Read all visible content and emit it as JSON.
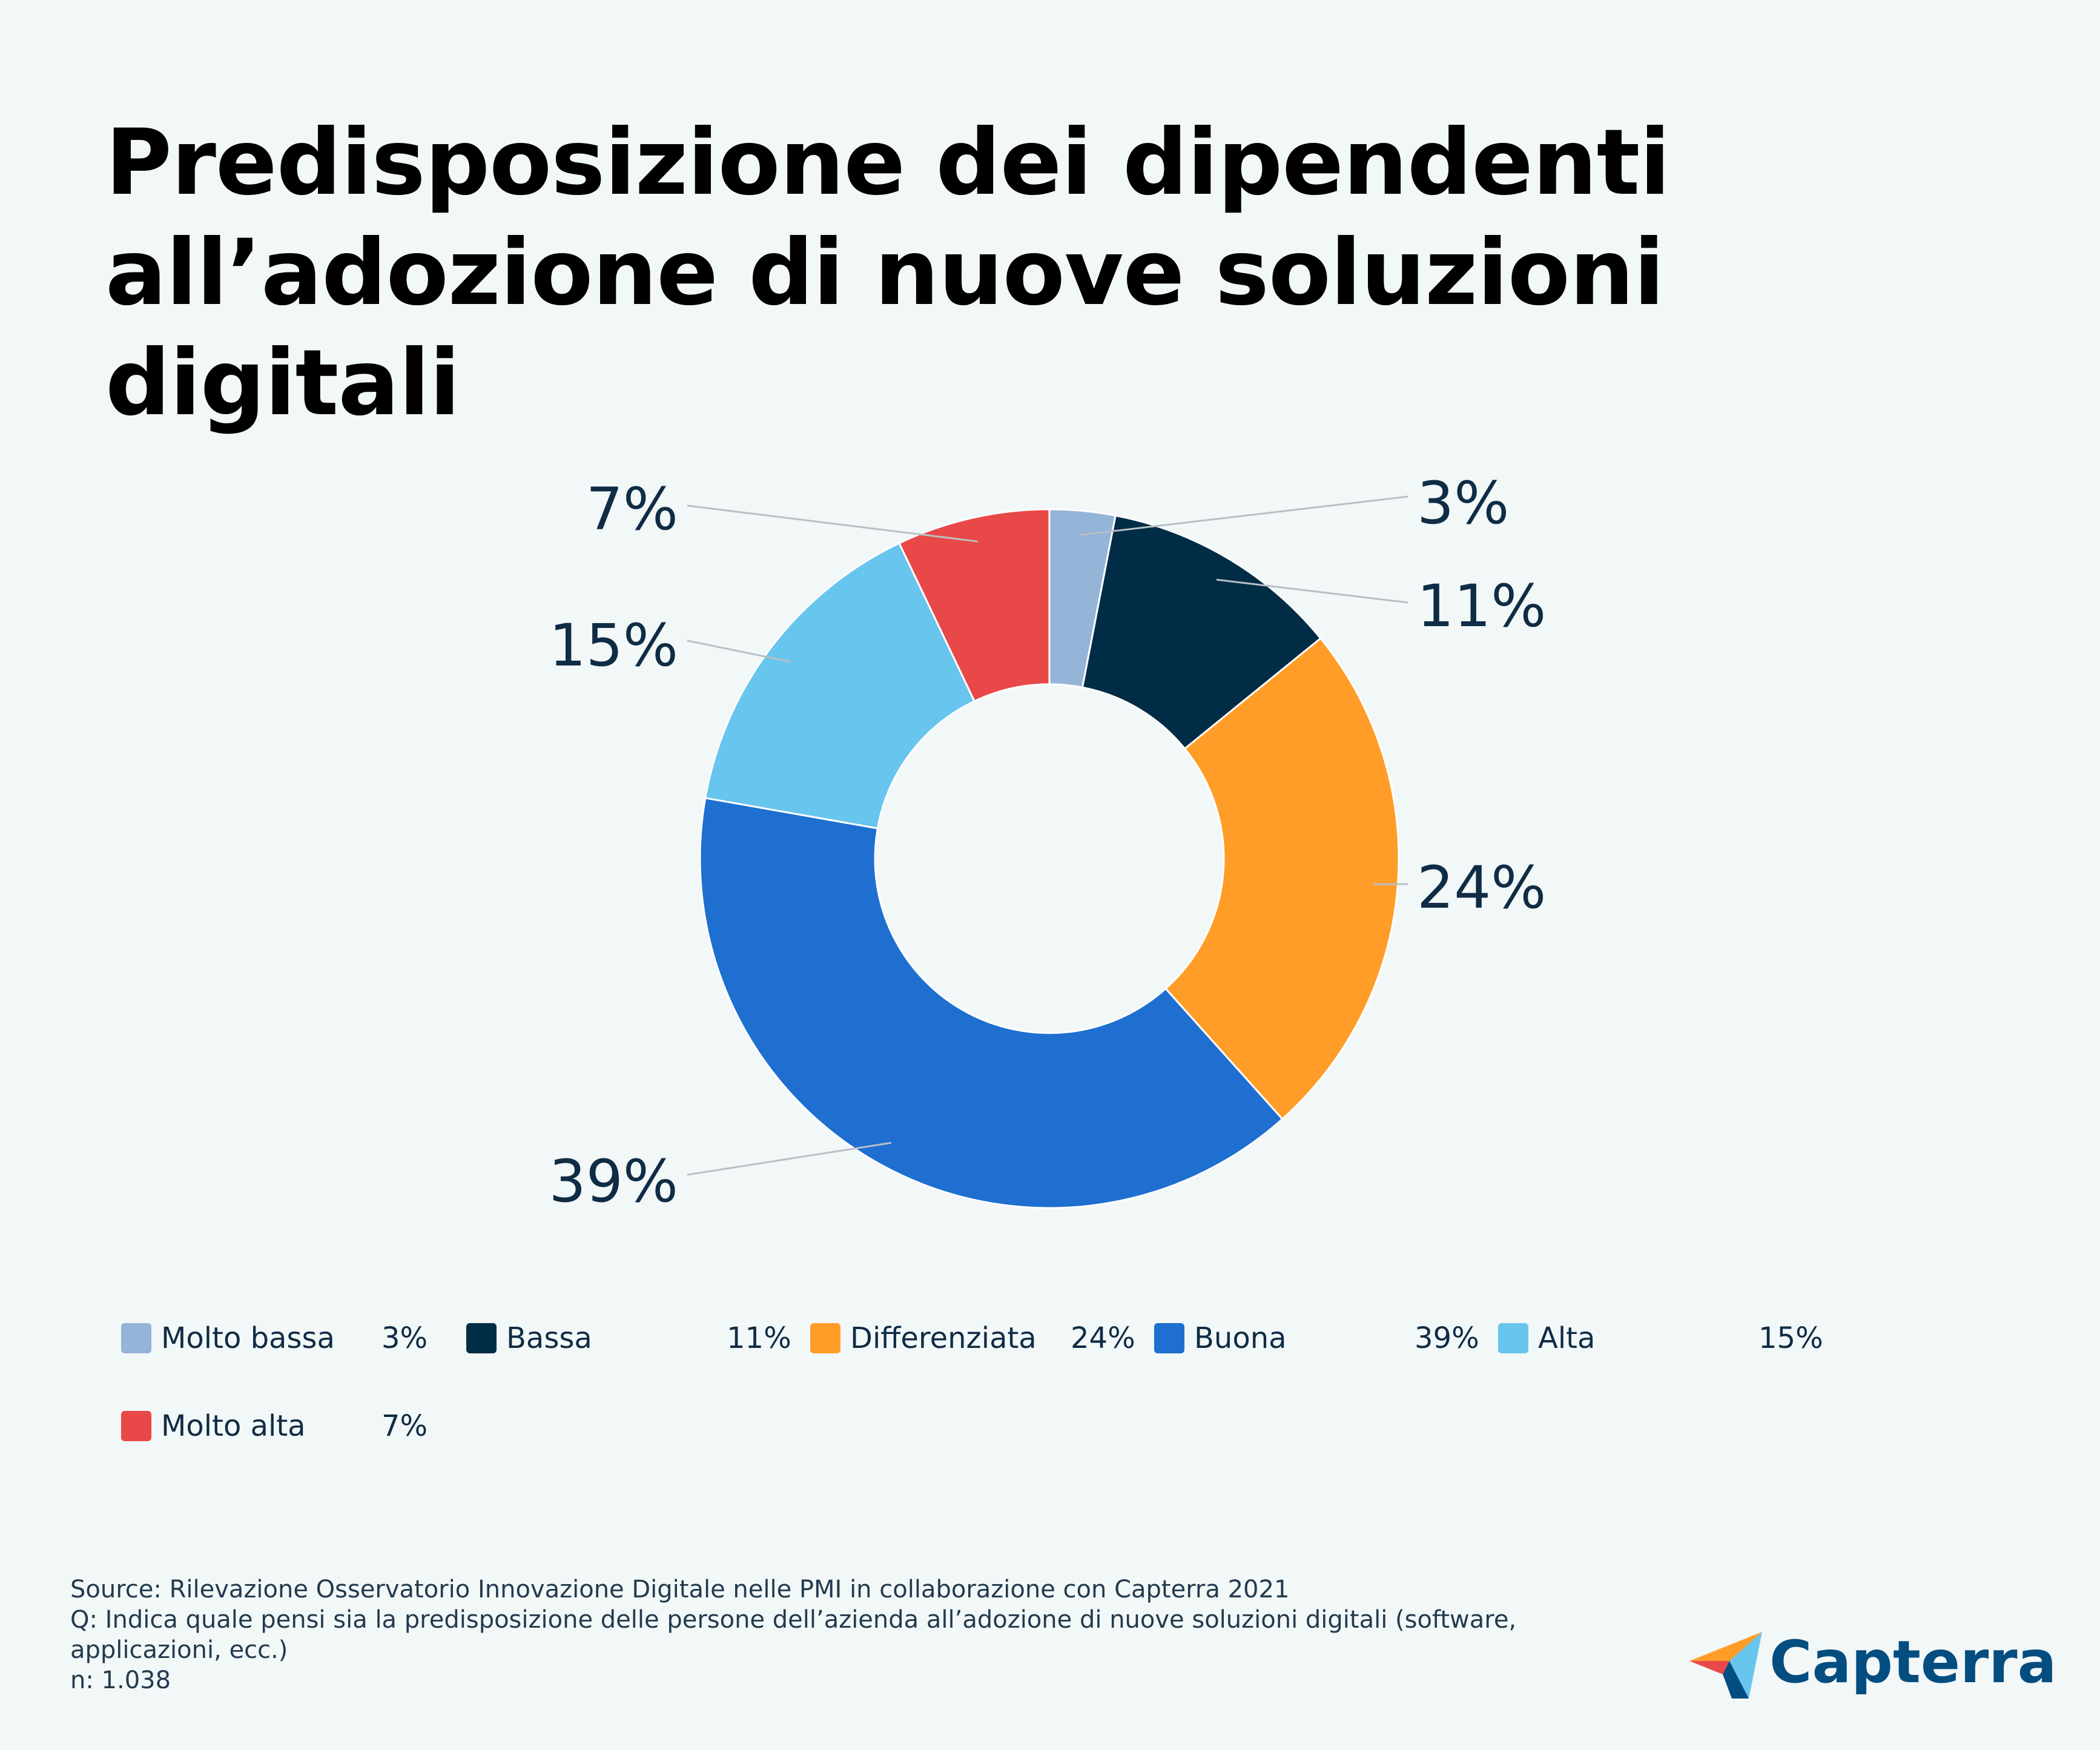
{
  "colors": {
    "background": "#f2f7f7",
    "molto_bassa": "#94b4d8",
    "bassa": "#002c46",
    "differenziata": "#ff9d28",
    "buona": "#1e6fd0",
    "alta": "#68c5ee",
    "molto_alta": "#e84848"
  },
  "chart_data": {
    "type": "pie",
    "style": "donut",
    "title": [
      "Predisposizione dei dipendenti",
      "all’adozione di nuove soluzioni digitali"
    ],
    "legend_placement": "bottom",
    "slices": [
      {
        "label": "Molto bassa",
        "value": 3,
        "display": "3%",
        "color": "#94b4d8"
      },
      {
        "label": "Bassa",
        "value": 11,
        "display": "11%",
        "color": "#002c46"
      },
      {
        "label": "Differenziata",
        "value": 24,
        "display": "24%",
        "color": "#ff9d28"
      },
      {
        "label": "Buona",
        "value": 39,
        "display": "39%",
        "color": "#1e6fd0"
      },
      {
        "label": "Alta",
        "value": 15,
        "display": "15%",
        "color": "#68c5ee"
      },
      {
        "label": "Molto alta",
        "value": 7,
        "display": "7%",
        "color": "#e84848"
      }
    ]
  },
  "source": {
    "line1": "Source: Rilevazione Osservatorio Innovazione Digitale nelle PMI in collaborazione con Capterra 2021",
    "line2": "Q: Indica quale pensi sia la predisposizione delle persone dell’azienda all’adozione di nuove soluzioni digitali (software,",
    "line3": "applicazioni, ecc.)",
    "line4": "n: 1.038"
  },
  "logo": {
    "text": "Capterra",
    "icon": "capterra-arrow-icon"
  }
}
